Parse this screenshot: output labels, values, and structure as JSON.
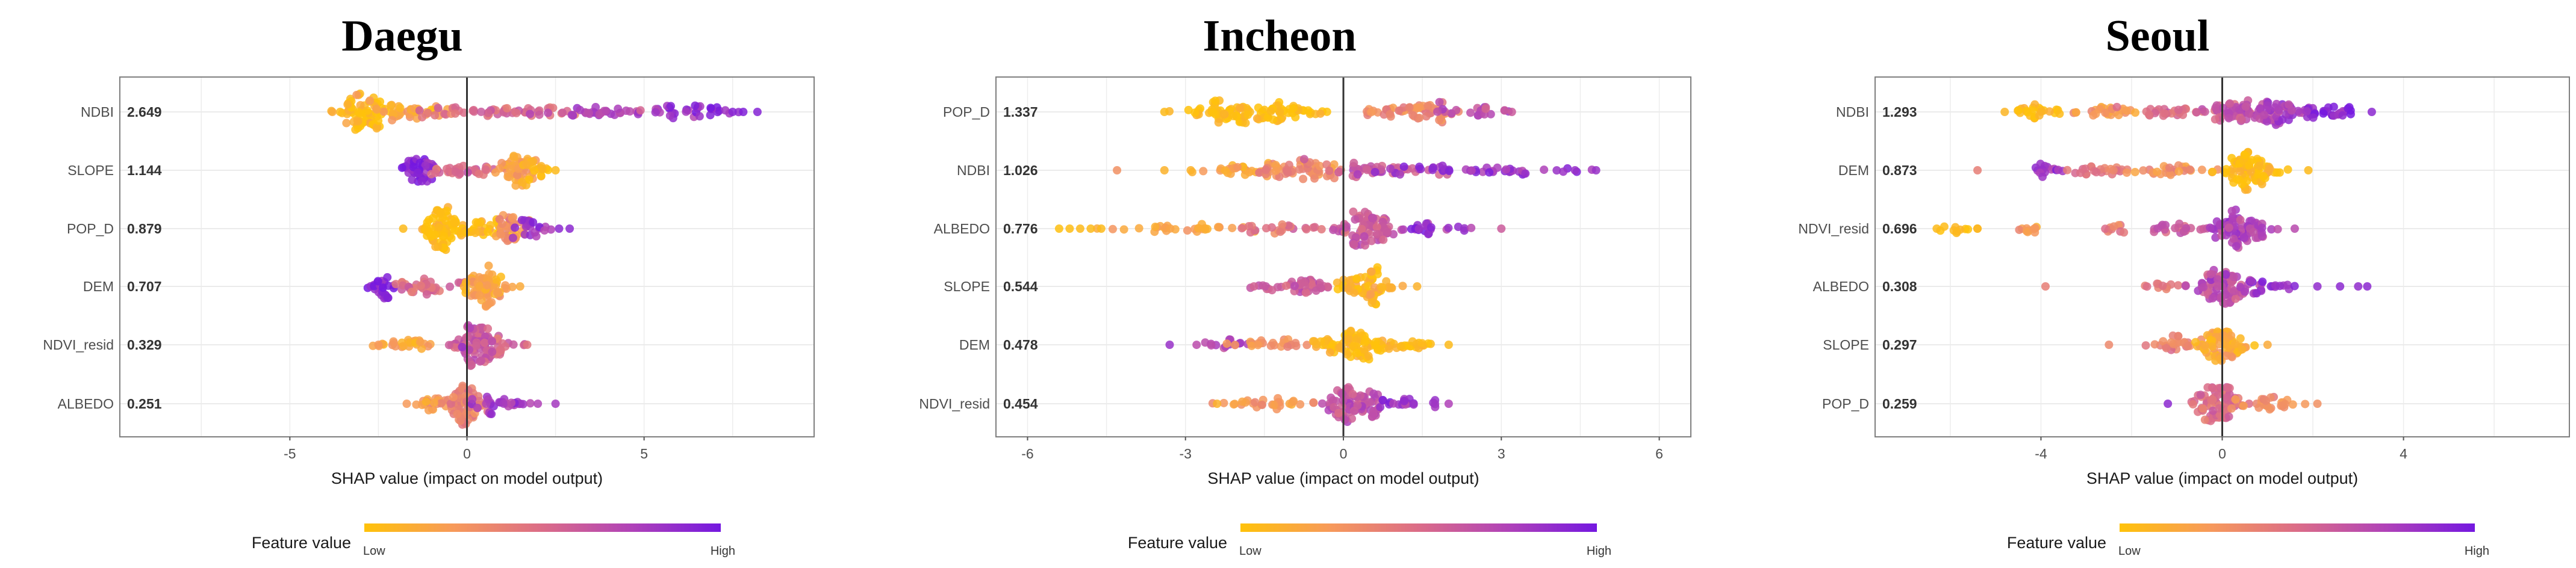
{
  "colors": {
    "low": "#FFC20A",
    "mid_low": "#F79A5A",
    "mid": "#DB6C88",
    "mid_high": "#B042B8",
    "high": "#7418E0"
  },
  "chart_data": [
    {
      "type": "scatter",
      "subtype": "shap-beeswarm",
      "title": "Daegu",
      "xlabel": "SHAP value (impact on model output)",
      "xlim": [
        -9.8,
        9.8
      ],
      "xticks": [
        -5,
        0,
        5
      ],
      "xtick_labels": [
        "-5",
        "0",
        "5"
      ],
      "grid": true,
      "legend": {
        "title": "Feature value",
        "low": "Low",
        "high": "High",
        "placement": "bottom"
      },
      "features": [
        {
          "name": "NDBI",
          "importance": "2.649",
          "clusters": [
            {
              "center": -2.9,
              "sd": 0.35,
              "n": 70,
              "value": 0.02
            },
            {
              "center": -1.8,
              "sd": 0.6,
              "n": 40,
              "value": 0.2
            },
            {
              "center": 1.0,
              "sd": 1.3,
              "n": 50,
              "value": 0.5
            },
            {
              "center": 4.3,
              "sd": 1.0,
              "n": 40,
              "value": 0.72
            },
            {
              "center": 6.6,
              "sd": 0.6,
              "n": 25,
              "value": 0.9
            }
          ],
          "outliers": [
            {
              "x": -3.8,
              "value": 0.15
            },
            {
              "x": 7.5,
              "value": 0.92
            },
            {
              "x": 7.8,
              "value": 0.95
            },
            {
              "x": 8.2,
              "value": 0.93
            }
          ]
        },
        {
          "name": "SLOPE",
          "importance": "1.144",
          "clusters": [
            {
              "center": -1.4,
              "sd": 0.25,
              "n": 45,
              "value": 0.9
            },
            {
              "center": -0.3,
              "sd": 0.5,
              "n": 30,
              "value": 0.5
            },
            {
              "center": 1.4,
              "sd": 0.3,
              "n": 50,
              "value": 0.2
            },
            {
              "center": 2.0,
              "sd": 0.25,
              "n": 15,
              "value": 0.03
            }
          ],
          "outliers": [
            {
              "x": 2.5,
              "value": 0.05
            }
          ]
        },
        {
          "name": "POP_D",
          "importance": "0.879",
          "clusters": [
            {
              "center": -0.7,
              "sd": 0.25,
              "n": 70,
              "value": 0.02
            },
            {
              "center": 0.4,
              "sd": 0.4,
              "n": 35,
              "value": 0.05
            },
            {
              "center": 1.3,
              "sd": 0.25,
              "n": 30,
              "value": 0.3
            },
            {
              "center": 1.8,
              "sd": 0.25,
              "n": 20,
              "value": 0.85
            }
          ],
          "outliers": [
            {
              "x": -1.8,
              "value": 0.05
            },
            {
              "x": 2.6,
              "value": 0.9
            },
            {
              "x": 2.9,
              "value": 0.9
            }
          ]
        },
        {
          "name": "DEM",
          "importance": "0.707",
          "clusters": [
            {
              "center": -2.4,
              "sd": 0.2,
              "n": 25,
              "value": 0.9
            },
            {
              "center": -1.1,
              "sd": 0.55,
              "n": 35,
              "value": 0.5
            },
            {
              "center": 0.5,
              "sd": 0.3,
              "n": 70,
              "value": 0.2
            }
          ],
          "outliers": [
            {
              "x": 1.5,
              "value": 0.15
            }
          ]
        },
        {
          "name": "NDVI_resid",
          "importance": "0.329",
          "clusters": [
            {
              "center": -1.7,
              "sd": 0.4,
              "n": 25,
              "value": 0.2
            },
            {
              "center": 0.2,
              "sd": 0.3,
              "n": 80,
              "value": 0.65
            },
            {
              "center": 1.1,
              "sd": 0.3,
              "n": 20,
              "value": 0.55
            }
          ],
          "outliers": [
            {
              "x": -2.5,
              "value": 0.25
            },
            {
              "x": 1.7,
              "value": 0.45
            }
          ]
        },
        {
          "name": "ALBEDO",
          "importance": "0.251",
          "clusters": [
            {
              "center": -0.9,
              "sd": 0.35,
              "n": 20,
              "value": 0.25
            },
            {
              "center": -0.1,
              "sd": 0.25,
              "n": 70,
              "value": 0.38
            },
            {
              "center": 0.9,
              "sd": 0.35,
              "n": 30,
              "value": 0.8
            }
          ],
          "outliers": [
            {
              "x": -1.7,
              "value": 0.25
            },
            {
              "x": 2.0,
              "value": 0.75
            },
            {
              "x": 2.5,
              "value": 0.8
            }
          ]
        }
      ]
    },
    {
      "type": "scatter",
      "subtype": "shap-beeswarm",
      "title": "Incheon",
      "xlabel": "SHAP value (impact on model output)",
      "xlim": [
        -6.6,
        6.6
      ],
      "xticks": [
        -6,
        -3,
        0,
        3,
        6
      ],
      "xtick_labels": [
        "-6",
        "-3",
        "0",
        "3",
        "6"
      ],
      "grid": true,
      "legend": {
        "title": "Feature value",
        "low": "Low",
        "high": "High",
        "placement": "bottom"
      },
      "features": [
        {
          "name": "POP_D",
          "importance": "1.337",
          "clusters": [
            {
              "center": -1.5,
              "sd": 0.5,
              "n": 80,
              "value": 0.02
            },
            {
              "center": -2.5,
              "sd": 0.4,
              "n": 20,
              "value": 0.03
            },
            {
              "center": 1.3,
              "sd": 0.5,
              "n": 55,
              "value": 0.35
            },
            {
              "center": 2.5,
              "sd": 0.35,
              "n": 20,
              "value": 0.7
            }
          ],
          "outliers": [
            {
              "x": -3.4,
              "value": 0.05
            },
            {
              "x": 3.2,
              "value": 0.6
            }
          ]
        },
        {
          "name": "NDBI",
          "importance": "1.026",
          "clusters": [
            {
              "center": -2.1,
              "sd": 0.5,
              "n": 25,
              "value": 0.18
            },
            {
              "center": -0.8,
              "sd": 0.45,
              "n": 60,
              "value": 0.35
            },
            {
              "center": 0.6,
              "sd": 0.5,
              "n": 40,
              "value": 0.6
            },
            {
              "center": 2.6,
              "sd": 1.0,
              "n": 45,
              "value": 0.85
            }
          ],
          "outliers": [
            {
              "x": -4.3,
              "value": 0.3
            },
            {
              "x": -3.4,
              "value": 0.1
            },
            {
              "x": -2.9,
              "value": 0.1
            },
            {
              "x": 4.4,
              "value": 0.85
            },
            {
              "x": 4.8,
              "value": 0.85
            }
          ]
        },
        {
          "name": "ALBEDO",
          "importance": "0.776",
          "clusters": [
            {
              "center": -3.0,
              "sd": 0.6,
              "n": 30,
              "value": 0.2
            },
            {
              "center": -1.0,
              "sd": 0.5,
              "n": 25,
              "value": 0.45
            },
            {
              "center": 0.5,
              "sd": 0.3,
              "n": 80,
              "value": 0.6
            },
            {
              "center": 1.8,
              "sd": 0.4,
              "n": 20,
              "value": 0.85
            }
          ],
          "outliers": [
            {
              "x": -5.4,
              "value": 0.02
            },
            {
              "x": -5.2,
              "value": 0.03
            },
            {
              "x": -5.0,
              "value": 0.05
            },
            {
              "x": -4.8,
              "value": 0.05
            },
            {
              "x": -4.6,
              "value": 0.05
            },
            {
              "x": 3.0,
              "value": 0.6
            }
          ]
        },
        {
          "name": "SLOPE",
          "importance": "0.544",
          "clusters": [
            {
              "center": -0.9,
              "sd": 0.4,
              "n": 40,
              "value": 0.6
            },
            {
              "center": 0.45,
              "sd": 0.25,
              "n": 65,
              "value": 0.08
            }
          ],
          "outliers": [
            {
              "x": -1.7,
              "value": 0.55
            },
            {
              "x": 1.4,
              "value": 0.1
            }
          ]
        },
        {
          "name": "DEM",
          "importance": "0.478",
          "clusters": [
            {
              "center": -2.3,
              "sd": 0.3,
              "n": 15,
              "value": 0.75
            },
            {
              "center": -1.2,
              "sd": 0.45,
              "n": 25,
              "value": 0.3
            },
            {
              "center": 0.2,
              "sd": 0.35,
              "n": 80,
              "value": 0.05
            },
            {
              "center": 1.3,
              "sd": 0.3,
              "n": 20,
              "value": 0.04
            }
          ],
          "outliers": [
            {
              "x": -3.3,
              "value": 0.85
            },
            {
              "x": 2.0,
              "value": 0.05
            }
          ]
        },
        {
          "name": "NDVI_resid",
          "importance": "0.454",
          "clusters": [
            {
              "center": -1.4,
              "sd": 0.5,
              "n": 30,
              "value": 0.25
            },
            {
              "center": 0.2,
              "sd": 0.3,
              "n": 80,
              "value": 0.65
            },
            {
              "center": 1.3,
              "sd": 0.3,
              "n": 20,
              "value": 0.85
            }
          ],
          "outliers": [
            {
              "x": -2.4,
              "value": 0.1
            },
            {
              "x": 2.0,
              "value": 0.75
            }
          ]
        }
      ]
    },
    {
      "type": "scatter",
      "subtype": "shap-beeswarm",
      "title": "Seoul",
      "xlabel": "SHAP value (impact on model output)",
      "xlim": [
        -7.66,
        7.66
      ],
      "xticks": [
        -4,
        0,
        4
      ],
      "xtick_labels": [
        "-4",
        "0",
        "4"
      ],
      "grid": true,
      "legend": {
        "title": "Feature value",
        "low": "Low",
        "high": "High",
        "placement": "bottom"
      },
      "features": [
        {
          "name": "NDBI",
          "importance": "1.293",
          "clusters": [
            {
              "center": -4.0,
              "sd": 0.4,
              "n": 25,
              "value": 0.05
            },
            {
              "center": -2.6,
              "sd": 0.45,
              "n": 25,
              "value": 0.25
            },
            {
              "center": -1.0,
              "sd": 0.55,
              "n": 30,
              "value": 0.5
            },
            {
              "center": 0.5,
              "sd": 0.35,
              "n": 55,
              "value": 0.65
            },
            {
              "center": 1.4,
              "sd": 0.3,
              "n": 45,
              "value": 0.8
            },
            {
              "center": 2.4,
              "sd": 0.35,
              "n": 25,
              "value": 0.92
            }
          ],
          "outliers": [
            {
              "x": -4.8,
              "value": 0.08
            },
            {
              "x": 3.3,
              "value": 0.9
            }
          ]
        },
        {
          "name": "DEM",
          "importance": "0.873",
          "clusters": [
            {
              "center": -3.9,
              "sd": 0.25,
              "n": 15,
              "value": 0.8
            },
            {
              "center": -2.9,
              "sd": 0.35,
              "n": 20,
              "value": 0.45
            },
            {
              "center": -1.2,
              "sd": 0.5,
              "n": 30,
              "value": 0.3
            },
            {
              "center": 0.6,
              "sd": 0.3,
              "n": 85,
              "value": 0.04
            }
          ],
          "outliers": [
            {
              "x": -5.4,
              "value": 0.4
            },
            {
              "x": -2.4,
              "value": 0.35
            },
            {
              "x": 1.9,
              "value": 0.05
            }
          ]
        },
        {
          "name": "NDVI_resid",
          "importance": "0.696",
          "clusters": [
            {
              "center": -5.9,
              "sd": 0.25,
              "n": 10,
              "value": 0.05
            },
            {
              "center": -4.3,
              "sd": 0.2,
              "n": 10,
              "value": 0.25
            },
            {
              "center": -2.4,
              "sd": 0.2,
              "n": 10,
              "value": 0.4
            },
            {
              "center": -1.0,
              "sd": 0.4,
              "n": 20,
              "value": 0.6
            },
            {
              "center": 0.4,
              "sd": 0.3,
              "n": 80,
              "value": 0.75
            }
          ],
          "outliers": [
            {
              "x": -6.3,
              "value": 0.05
            },
            {
              "x": -5.4,
              "value": 0.08
            },
            {
              "x": 1.6,
              "value": 0.7
            }
          ]
        },
        {
          "name": "ALBEDO",
          "importance": "0.308",
          "clusters": [
            {
              "center": -1.3,
              "sd": 0.3,
              "n": 10,
              "value": 0.45
            },
            {
              "center": 0.0,
              "sd": 0.3,
              "n": 80,
              "value": 0.68
            },
            {
              "center": 1.1,
              "sd": 0.3,
              "n": 20,
              "value": 0.85
            }
          ],
          "outliers": [
            {
              "x": -3.9,
              "value": 0.4
            },
            {
              "x": 2.1,
              "value": 0.88
            },
            {
              "x": 2.6,
              "value": 0.9
            },
            {
              "x": 3.0,
              "value": 0.88
            },
            {
              "x": 3.2,
              "value": 0.9
            }
          ]
        },
        {
          "name": "SLOPE",
          "importance": "0.297",
          "clusters": [
            {
              "center": -1.0,
              "sd": 0.35,
              "n": 25,
              "value": 0.35
            },
            {
              "center": 0.0,
              "sd": 0.3,
              "n": 75,
              "value": 0.15
            }
          ],
          "outliers": [
            {
              "x": -2.5,
              "value": 0.35
            },
            {
              "x": 1.0,
              "value": 0.15
            }
          ]
        },
        {
          "name": "POP_D",
          "importance": "0.259",
          "clusters": [
            {
              "center": -0.1,
              "sd": 0.25,
              "n": 75,
              "value": 0.5
            },
            {
              "center": 1.0,
              "sd": 0.4,
              "n": 25,
              "value": 0.3
            }
          ],
          "outliers": [
            {
              "x": -1.2,
              "value": 0.9
            },
            {
              "x": 2.1,
              "value": 0.3
            }
          ]
        }
      ]
    }
  ]
}
